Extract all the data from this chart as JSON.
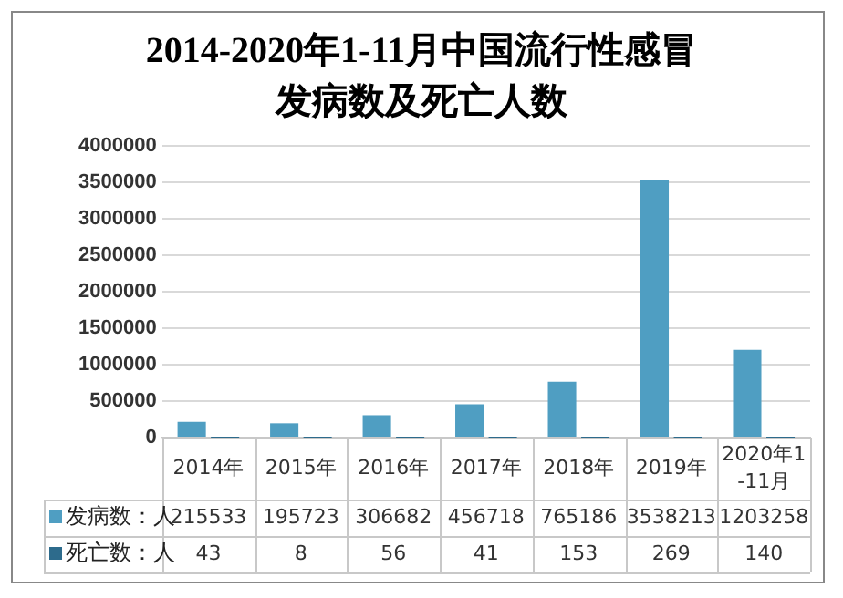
{
  "chart_data": {
    "type": "bar",
    "title": "2014-2020年1-11月中国流行性感冒发病数及死亡人数",
    "categories": [
      "2014年",
      "2015年",
      "2016年",
      "2017年",
      "2018年",
      "2019年",
      "2020年1-11月"
    ],
    "series": [
      {
        "name": "发病数：人",
        "color": "#4f9ec2",
        "values": [
          215533,
          195723,
          306682,
          456718,
          765186,
          3538213,
          1203258
        ]
      },
      {
        "name": "死亡数：人",
        "color": "#2d6b8c",
        "values": [
          43,
          8,
          56,
          41,
          153,
          269,
          140
        ]
      }
    ],
    "ylim": [
      0,
      4000000
    ],
    "yticks": [
      0,
      500000,
      1000000,
      1500000,
      2000000,
      2500000,
      3000000,
      3500000,
      4000000
    ],
    "grid": "y",
    "legend": "bottom",
    "data_labels": true
  }
}
